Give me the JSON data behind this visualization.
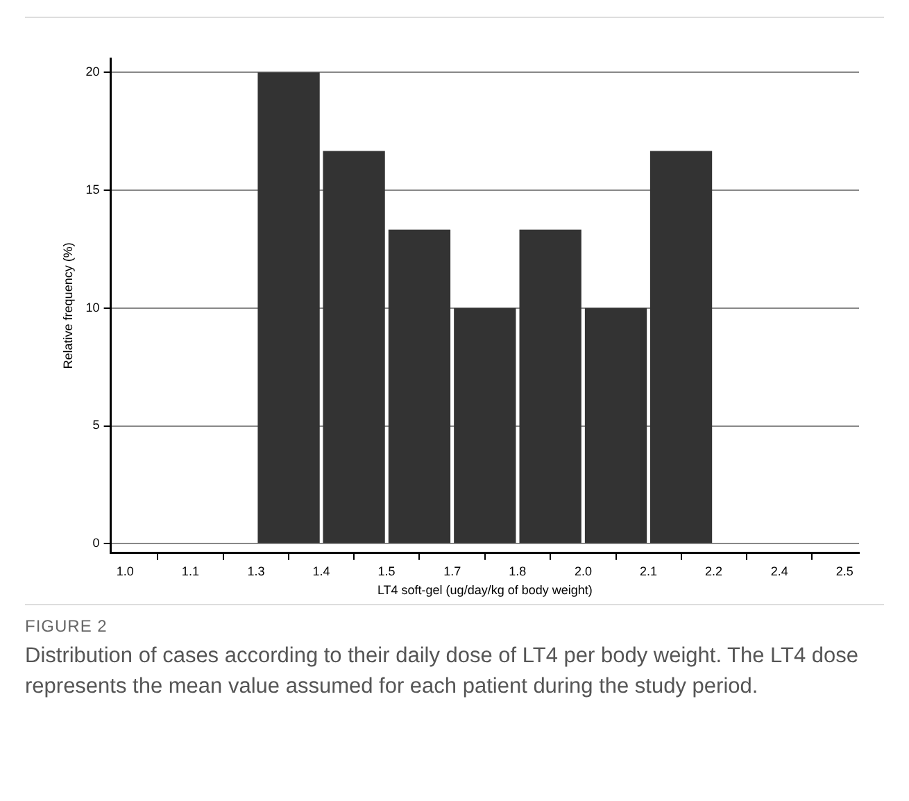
{
  "chart_data": {
    "type": "histogram",
    "title": "FIGURE 2",
    "xlabel": "LT4 soft-gel (ug/day/kg of body weight)",
    "ylabel": "Relative frequency (%)",
    "bins": [
      1.273,
      1.409,
      1.545,
      1.682,
      1.818,
      1.955,
      2.091,
      2.227
    ],
    "values": [
      20,
      16.67,
      13.33,
      10,
      13.33,
      10,
      16.67
    ],
    "color": "#333333",
    "xlim": [
      0.97,
      2.53
    ],
    "xticks": [
      {
        "value": 1.0,
        "label": "1.0"
      },
      {
        "value": 1.136,
        "label": "1.1"
      },
      {
        "value": 1.273,
        "label": "1.3"
      },
      {
        "value": 1.409,
        "label": "1.4"
      },
      {
        "value": 1.545,
        "label": "1.5"
      },
      {
        "value": 1.682,
        "label": "1.7"
      },
      {
        "value": 1.818,
        "label": "1.8"
      },
      {
        "value": 1.955,
        "label": "2.0"
      },
      {
        "value": 2.091,
        "label": "2.1"
      },
      {
        "value": 2.227,
        "label": "2.2"
      },
      {
        "value": 2.364,
        "label": "2.4"
      },
      {
        "value": 2.5,
        "label": "2.5"
      }
    ],
    "ylim": [
      -0.4,
      20.6
    ],
    "yticks": [
      0,
      5,
      10,
      15,
      20
    ],
    "grid": "y",
    "annotations": [
      "Distribution of cases according to their daily dose of LT4 per body weight. The LT4 dose represents the mean value assumed for each patient during the study period."
    ]
  }
}
